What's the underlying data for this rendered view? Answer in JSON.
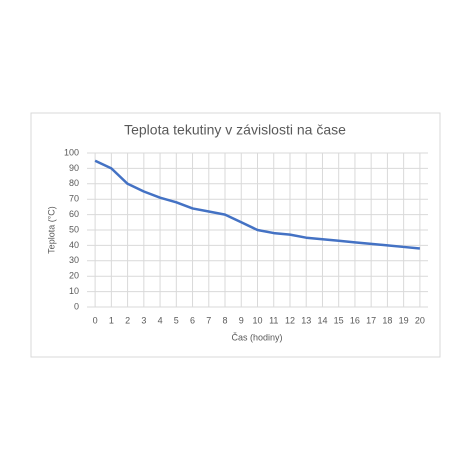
{
  "chart_data": {
    "type": "line",
    "title": "Teplota tekutiny v závislosti na čase",
    "x_label": "Čas (hodiny)",
    "y_label": "Teplota (°C)",
    "x": [
      0,
      1,
      2,
      3,
      4,
      5,
      6,
      7,
      8,
      9,
      10,
      11,
      12,
      13,
      14,
      15,
      16,
      17,
      18,
      19,
      20
    ],
    "series": [
      {
        "name": "Teplota",
        "color": "#4472c4",
        "values": [
          95,
          90,
          80,
          75,
          71,
          68,
          64,
          62,
          60,
          55,
          50,
          48,
          47,
          45,
          44,
          43,
          42,
          41,
          40,
          39,
          38
        ]
      }
    ],
    "xlim": [
      -0.5,
      20.5
    ],
    "xticks": [
      0,
      1,
      2,
      3,
      4,
      5,
      6,
      7,
      8,
      9,
      10,
      11,
      12,
      13,
      14,
      15,
      16,
      17,
      18,
      19,
      20
    ],
    "ylim": [
      0,
      100
    ],
    "yticks": [
      0,
      10,
      20,
      30,
      40,
      50,
      60,
      70,
      80,
      90,
      100
    ],
    "grid": true
  }
}
